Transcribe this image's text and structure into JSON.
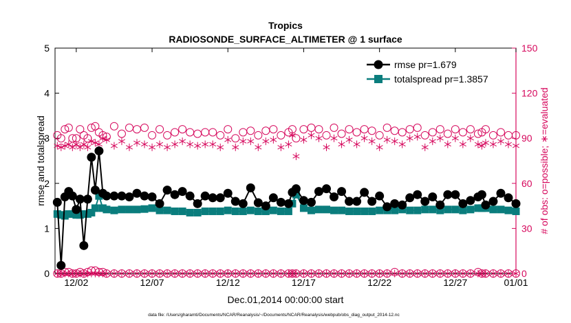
{
  "chart_data": {
    "type": "line",
    "title": "Tropics",
    "subtitle": "RADIOSONDE_SURFACE_ALTIMETER @ 1 surface",
    "xlabel": "Dec.01,2014 00:00:00 start",
    "ylabel_left": "rmse and totalspread",
    "ylabel_right": "# of obs: o=possible; ∗=evaluated",
    "footer": "data file: /Users/gharamti/Documents/NCAR/Reanalysis/~/Documents/NCAR/Reanalysis/webpub/obs_diag_output_2014-12.nc",
    "x_range": [
      0.6,
      31.0
    ],
    "x_ticks": [
      {
        "value": 2,
        "label": "12/02"
      },
      {
        "value": 7,
        "label": "12/07"
      },
      {
        "value": 12,
        "label": "12/12"
      },
      {
        "value": 17,
        "label": "12/17"
      },
      {
        "value": 22,
        "label": "12/22"
      },
      {
        "value": 27,
        "label": "12/27"
      },
      {
        "value": 31,
        "label": "01/01"
      }
    ],
    "ylim_left": [
      0,
      5
    ],
    "yticks_left": [
      0,
      1,
      2,
      3,
      4,
      5
    ],
    "ylim_right": [
      0,
      150
    ],
    "yticks_right": [
      0,
      30,
      60,
      90,
      120,
      150
    ],
    "legend_position": "top-right",
    "colors": {
      "rmse": "#000000",
      "totalspread": "#0a7d7d",
      "obs": "#d6075c",
      "axis": "#000000",
      "right_axis": "#d6075c"
    },
    "x": [
      0.75,
      1.0,
      1.25,
      1.5,
      1.75,
      2.0,
      2.25,
      2.5,
      2.75,
      3.0,
      3.25,
      3.5,
      3.75,
      4.0,
      4.5,
      5.0,
      5.5,
      6.0,
      6.5,
      7.0,
      7.5,
      8.0,
      8.5,
      9.0,
      9.5,
      10.0,
      10.5,
      11.0,
      11.5,
      12.0,
      12.5,
      13.0,
      13.5,
      14.0,
      14.5,
      15.0,
      15.5,
      16.0,
      16.25,
      16.5,
      17.0,
      17.5,
      18.0,
      18.5,
      19.0,
      19.5,
      20.0,
      20.5,
      21.0,
      21.5,
      22.0,
      22.5,
      23.0,
      23.5,
      24.0,
      24.5,
      25.0,
      25.5,
      26.0,
      26.5,
      27.0,
      27.5,
      28.0,
      28.5,
      28.75,
      29.0,
      29.5,
      30.0,
      30.5,
      31.0
    ],
    "series": [
      {
        "name": "rmse",
        "legend": "rmse pr=1.679",
        "marker": "circle",
        "values": [
          1.58,
          0.18,
          1.7,
          1.82,
          1.72,
          1.42,
          1.65,
          0.62,
          1.65,
          2.58,
          1.85,
          2.72,
          1.78,
          1.72,
          1.72,
          1.72,
          1.7,
          1.78,
          1.72,
          1.7,
          1.55,
          1.85,
          1.75,
          1.82,
          1.72,
          1.55,
          1.72,
          1.68,
          1.68,
          1.78,
          1.6,
          1.55,
          1.9,
          1.57,
          1.5,
          1.68,
          1.58,
          1.55,
          1.8,
          1.88,
          1.62,
          1.58,
          1.82,
          1.88,
          1.7,
          1.82,
          1.6,
          1.6,
          1.8,
          1.6,
          1.72,
          1.48,
          1.55,
          1.52,
          1.68,
          1.75,
          1.6,
          1.7,
          1.52,
          1.75,
          1.75,
          1.55,
          1.62,
          1.7,
          1.75,
          1.52,
          1.6,
          1.78,
          1.68,
          1.55
        ]
      },
      {
        "name": "totalspread",
        "legend": "totalspread pr=1.3857",
        "marker": "square",
        "values": [
          1.32,
          1.3,
          1.28,
          1.32,
          1.32,
          1.3,
          1.3,
          1.32,
          1.32,
          1.35,
          1.45,
          1.72,
          1.45,
          1.42,
          1.4,
          1.42,
          1.42,
          1.42,
          1.43,
          1.45,
          1.4,
          1.4,
          1.38,
          1.38,
          1.35,
          1.35,
          1.38,
          1.38,
          1.38,
          1.4,
          1.38,
          1.38,
          1.4,
          1.38,
          1.38,
          1.4,
          1.38,
          1.38,
          1.55,
          1.75,
          1.45,
          1.4,
          1.42,
          1.42,
          1.4,
          1.4,
          1.38,
          1.38,
          1.38,
          1.38,
          1.4,
          1.4,
          1.4,
          1.42,
          1.4,
          1.4,
          1.42,
          1.42,
          1.4,
          1.42,
          1.42,
          1.4,
          1.42,
          1.45,
          1.45,
          1.45,
          1.42,
          1.42,
          1.4,
          1.38
        ]
      },
      {
        "name": "obs_possible",
        "marker": "open-circle",
        "axis": "right",
        "values": [
          92,
          90,
          96,
          97,
          90,
          90,
          96,
          92,
          90,
          97,
          98,
          94,
          92,
          91,
          98,
          93,
          97,
          96,
          97,
          92,
          96,
          92,
          94,
          96,
          94,
          93,
          94,
          94,
          92,
          96,
          90,
          94,
          95,
          92,
          95,
          96,
          92,
          94,
          96,
          90,
          96,
          97,
          96,
          92,
          97,
          93,
          96,
          94,
          96,
          95,
          92,
          97,
          95,
          94,
          96,
          97,
          92,
          94,
          96,
          93,
          96,
          94,
          96,
          93,
          94,
          96,
          92,
          94,
          92,
          92
        ]
      },
      {
        "name": "obs_evaluated",
        "marker": "asterisk",
        "axis": "right",
        "values": [
          85,
          84,
          85,
          86,
          84,
          86,
          84,
          86,
          84,
          88,
          87,
          86,
          90,
          89,
          85,
          88,
          84,
          87,
          86,
          84,
          86,
          84,
          86,
          88,
          86,
          85,
          86,
          86,
          84,
          89,
          84,
          88,
          88,
          84,
          88,
          89,
          84,
          86,
          92,
          78,
          89,
          92,
          90,
          84,
          90,
          86,
          89,
          86,
          90,
          88,
          84,
          89,
          88,
          86,
          90,
          91,
          84,
          88,
          90,
          86,
          90,
          86,
          90,
          86,
          85,
          87,
          86,
          88,
          86,
          85
        ]
      },
      {
        "name": "obs_possible_zero",
        "marker": "open-circle",
        "axis": "right",
        "values": [
          0,
          0,
          1,
          1,
          0,
          0,
          1,
          0,
          1,
          2,
          2,
          1,
          1,
          0,
          0,
          0,
          0,
          0,
          0,
          0,
          0,
          0,
          0,
          0,
          0,
          0,
          0,
          0,
          0,
          0,
          0,
          0,
          0,
          0,
          0,
          0,
          0,
          0,
          0,
          0,
          0,
          0,
          0,
          0,
          0,
          0,
          0,
          0,
          0,
          0,
          0,
          0,
          1,
          0,
          0,
          0,
          0,
          0,
          0,
          0,
          0,
          0,
          0,
          1,
          0,
          0,
          0,
          0,
          0,
          0
        ]
      },
      {
        "name": "obs_evaluated_zero",
        "marker": "asterisk",
        "axis": "right",
        "values": [
          0,
          0,
          0,
          0,
          0,
          0,
          0,
          0,
          0,
          0,
          0,
          0,
          0,
          0,
          0,
          0,
          0,
          0,
          0,
          0,
          0,
          0,
          0,
          0,
          0,
          0,
          0,
          0,
          0,
          0,
          0,
          0,
          0,
          0,
          0,
          0,
          0,
          0,
          0,
          0,
          0,
          0,
          0,
          0,
          0,
          0,
          0,
          0,
          0,
          0,
          0,
          0,
          0,
          0,
          0,
          0,
          0,
          0,
          0,
          0,
          0,
          0,
          0,
          0,
          0,
          0,
          0,
          0,
          0,
          0
        ]
      }
    ]
  }
}
